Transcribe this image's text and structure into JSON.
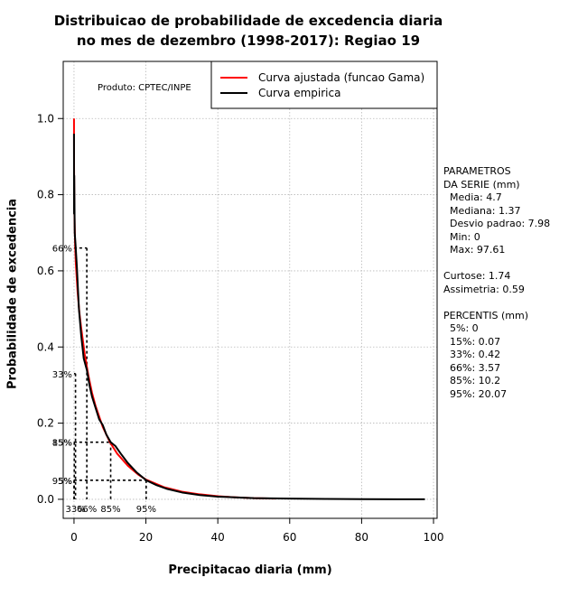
{
  "chart_data": {
    "type": "line",
    "title_line1": "Distribuicao de probabilidade de excedencia diaria",
    "title_line2": "no mes de dezembro (1998-2017): Regiao 19",
    "xlabel": "Precipitacao diaria (mm)",
    "ylabel": "Probabilidade de excedencia",
    "xlim": [
      -3,
      101
    ],
    "ylim": [
      -0.05,
      1.15
    ],
    "xticks": [
      0,
      20,
      40,
      60,
      80,
      100
    ],
    "yticks": [
      0.0,
      0.2,
      0.4,
      0.6,
      0.8,
      1.0
    ],
    "xtick_labels": [
      "0",
      "20",
      "40",
      "60",
      "80",
      "100"
    ],
    "ytick_labels": [
      "0.0",
      "0.2",
      "0.4",
      "0.6",
      "0.8",
      "1.0"
    ],
    "grid": true,
    "product_label": "Produto: CPTEC/INPE",
    "legend": {
      "position": "top-right",
      "entries": [
        {
          "label": "Curva ajustada (funcao Gama)",
          "color": "#ff0000"
        },
        {
          "label": "Curva empirica",
          "color": "#000000"
        }
      ]
    },
    "series": [
      {
        "name": "Curva ajustada (funcao Gama)",
        "color": "#ff0000",
        "x": [
          0,
          0.005,
          0.02,
          0.1,
          0.3,
          0.5,
          1,
          1.5,
          2,
          3,
          4,
          5,
          6,
          8,
          10,
          12,
          15,
          18,
          20,
          25,
          30,
          35,
          40,
          45,
          50,
          56
        ],
        "y": [
          1.0,
          0.93,
          0.87,
          0.76,
          0.67,
          0.62,
          0.545,
          0.49,
          0.45,
          0.38,
          0.325,
          0.28,
          0.245,
          0.19,
          0.15,
          0.12,
          0.088,
          0.064,
          0.052,
          0.032,
          0.02,
          0.013,
          0.008,
          0.005,
          0.003,
          0.002
        ]
      },
      {
        "name": "Curva empirica",
        "color": "#000000",
        "x": [
          0,
          0.001,
          0.02,
          0.07,
          0.2,
          0.42,
          0.8,
          1.37,
          2,
          2.7,
          3.57,
          4.3,
          5,
          6,
          7,
          8,
          9,
          10.2,
          11.5,
          13,
          15,
          17.5,
          20.07,
          23,
          26,
          30,
          35,
          40,
          50,
          60,
          70,
          80,
          90,
          97.61
        ],
        "y": [
          0.96,
          0.84,
          0.75,
          0.85,
          0.7,
          0.67,
          0.61,
          0.5,
          0.43,
          0.37,
          0.34,
          0.3,
          0.27,
          0.24,
          0.21,
          0.195,
          0.17,
          0.15,
          0.14,
          0.12,
          0.095,
          0.07,
          0.05,
          0.037,
          0.027,
          0.018,
          0.011,
          0.007,
          0.003,
          0.002,
          0.001,
          0.0005,
          0.0002,
          0.0
        ]
      }
    ],
    "percentile_markers": [
      {
        "label": "5%",
        "x": 0,
        "y": 0.05,
        "show_x_label": false
      },
      {
        "label": "15%",
        "x": 0.07,
        "y": 0.15,
        "show_x_label": false
      },
      {
        "label": "33%",
        "x": 0.42,
        "y": 0.33,
        "show_x_label": true
      },
      {
        "label": "66%",
        "x": 3.57,
        "y": 0.66,
        "show_x_label": true
      },
      {
        "label": "85%",
        "x": 10.2,
        "y": 0.15,
        "show_x_label": true
      },
      {
        "label": "95%",
        "x": 20.07,
        "y": 0.05,
        "show_x_label": true
      }
    ]
  },
  "side_panel": {
    "lines": [
      "PARAMETROS",
      "DA SERIE (mm)",
      "  Media: 4.7",
      "  Mediana: 1.37",
      "  Desvio padrao: 7.98",
      "  Min: 0",
      "  Max: 97.61",
      "",
      "Curtose: 1.74",
      "Assimetria: 0.59",
      "",
      "PERCENTIS (mm)",
      "  5%: 0",
      "  15%: 0.07",
      "  33%: 0.42",
      "  66%: 3.57",
      "  85%: 10.2",
      "  95%: 20.07"
    ]
  }
}
